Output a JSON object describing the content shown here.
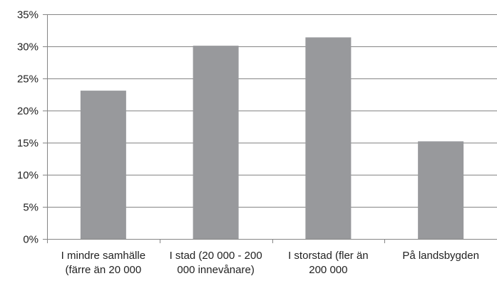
{
  "chart_data": {
    "type": "bar",
    "title": "",
    "xlabel": "",
    "ylabel": "",
    "categories": [
      "I mindre samhälle (färre än 20 000",
      "I stad (20 000 - 200 000 innevånare)",
      "I storstad (fler än 200 000",
      "På landsbygden"
    ],
    "category_lines": [
      [
        "I mindre samhälle",
        "(färre än 20 000"
      ],
      [
        "I stad (20 000 - 200",
        "000 innevånare)"
      ],
      [
        "I storstad (fler än",
        "200 000"
      ],
      [
        "På landsbygden",
        ""
      ]
    ],
    "values": [
      0.231,
      0.301,
      0.314,
      0.152
    ],
    "ylim": [
      0,
      0.35
    ],
    "yticks": [
      0,
      0.05,
      0.1,
      0.15,
      0.2,
      0.25,
      0.3,
      0.35
    ],
    "ytick_labels": [
      "0%",
      "5%",
      "10%",
      "15%",
      "20%",
      "25%",
      "30%",
      "35%"
    ],
    "grid": true,
    "colors": {
      "bar": "#98999c",
      "grid": "#868686",
      "axis": "#868686",
      "text": "#222222"
    }
  }
}
